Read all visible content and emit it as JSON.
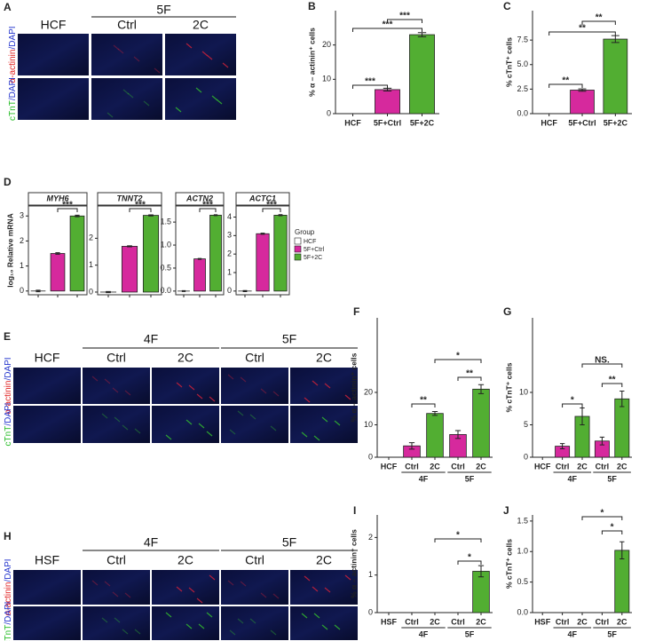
{
  "image_panels": [
    {
      "panel": "A",
      "groups": [
        "5F"
      ],
      "columns": [
        "HCF",
        "Ctrl",
        "2C"
      ],
      "stains": [
        [
          "α-actinin",
          "/DAPI"
        ],
        [
          "cTnT",
          "/DAPI"
        ]
      ]
    },
    {
      "panel": "E",
      "groups": [
        "4F",
        "5F"
      ],
      "columns": [
        "HCF",
        "Ctrl",
        "2C",
        "Ctrl",
        "2C"
      ],
      "stains": [
        [
          "α-actinin",
          "/DAPI"
        ],
        [
          "cTnT",
          "/DAPI"
        ]
      ]
    },
    {
      "panel": "H",
      "groups": [
        "4F",
        "5F"
      ],
      "columns": [
        "HSF",
        "Ctrl",
        "2C",
        "Ctrl",
        "2C"
      ],
      "stains": [
        [
          "α-actinin",
          "/DAPI"
        ],
        [
          "cTnT",
          "/DAPI"
        ]
      ]
    }
  ],
  "chart_data": [
    {
      "type": "bar",
      "panel": "B",
      "ylabel": "% α – actinin⁺ cells",
      "categories": [
        "HCF",
        "5F+Ctrl",
        "5F+2C"
      ],
      "values": [
        0,
        7,
        23
      ],
      "errors": [
        0,
        0.4,
        0.6
      ],
      "colors": [
        "#ffffff",
        "#d6299d",
        "#52ae32"
      ],
      "ylim": [
        0,
        30
      ],
      "yticks": [
        0,
        10,
        20
      ],
      "brackets": [
        "***",
        "***",
        "***"
      ]
    },
    {
      "type": "bar",
      "panel": "C",
      "ylabel": "% cTnT⁺ cells",
      "categories": [
        "HCF",
        "5F+Ctrl",
        "5F+2C"
      ],
      "values": [
        0,
        2.4,
        7.6
      ],
      "errors": [
        0,
        0.12,
        0.35
      ],
      "colors": [
        "#ffffff",
        "#d6299d",
        "#52ae32"
      ],
      "ylim": [
        0,
        10.5
      ],
      "yticks": [
        {
          "value": 0,
          "label": "0.0"
        },
        2.5,
        {
          "value": 5,
          "label": "5.0"
        },
        7.5
      ],
      "brackets": [
        "**",
        "**",
        "**"
      ]
    },
    {
      "type": "bar",
      "panel": "D",
      "title": "MYH6",
      "ylabel": "log₁₀ Relative mRNA",
      "categories": [
        null,
        null,
        null
      ],
      "values": [
        0,
        1.5,
        3.0
      ],
      "errors": [
        0.03,
        0.03,
        0.03
      ],
      "colors": [
        "#ffffff",
        "#d6299d",
        "#52ae32"
      ],
      "ylim": [
        -0.15,
        3.4
      ],
      "yticks": [
        0,
        1,
        2,
        3
      ],
      "brackets": [
        "***"
      ]
    },
    {
      "type": "bar",
      "title": "TNNT2",
      "categories": [
        null,
        null,
        null
      ],
      "values": [
        0,
        1.7,
        2.85
      ],
      "errors": [
        0.02,
        0.02,
        0.02
      ],
      "colors": [
        "#ffffff",
        "#d6299d",
        "#52ae32"
      ],
      "ylim": [
        -0.1,
        3.2
      ],
      "yticks": [
        0,
        1,
        2
      ],
      "brackets": [
        "***"
      ]
    },
    {
      "type": "bar",
      "title": "ACTN2",
      "categories": [
        null,
        null,
        null
      ],
      "values": [
        0,
        0.7,
        1.65
      ],
      "errors": [
        0.01,
        0.01,
        0.01
      ],
      "colors": [
        "#ffffff",
        "#d6299d",
        "#52ae32"
      ],
      "ylim": [
        -0.08,
        1.85
      ],
      "yticks": [
        {
          "value": 0,
          "label": "0.0"
        },
        0.5,
        {
          "value": 1,
          "label": "1.0"
        },
        1.5
      ],
      "brackets": [
        "***"
      ]
    },
    {
      "type": "bar",
      "title": "ACTC1",
      "categories": [
        null,
        null,
        null
      ],
      "values": [
        0,
        3.1,
        4.1
      ],
      "errors": [
        0.03,
        0.03,
        0.03
      ],
      "colors": [
        "#ffffff",
        "#d6299d",
        "#52ae32"
      ],
      "ylim": [
        -0.2,
        4.6
      ],
      "yticks": [
        0,
        1,
        2,
        3,
        4
      ],
      "brackets": [
        "***"
      ],
      "legend": {
        "title": "Group",
        "names": [
          "HCF",
          "5F+Ctrl",
          "5F+2C"
        ]
      }
    },
    {
      "type": "bar",
      "panel": "F",
      "ylabel": "% α – actinin⁺ cells",
      "categories": [
        "HCF",
        "Ctrl",
        "2C",
        "Ctrl",
        "2C"
      ],
      "group_labels": [
        "4F",
        "5F"
      ],
      "values": [
        0,
        3.5,
        13.5,
        7,
        21
      ],
      "errors": [
        0,
        1,
        0.6,
        1.2,
        1.4
      ],
      "colors": [
        "#ffffff",
        "#d6299d",
        "#52ae32",
        "#d6299d",
        "#52ae32"
      ],
      "ylim": [
        0,
        43
      ],
      "yticks": [
        0,
        10,
        20
      ],
      "brackets": [
        "**",
        "**",
        "*"
      ]
    },
    {
      "type": "bar",
      "panel": "G",
      "ylabel": "% cTnT⁺ cells",
      "categories": [
        "HCF",
        "Ctrl",
        "2C",
        "Ctrl",
        "2C"
      ],
      "group_labels": [
        "4F",
        "5F"
      ],
      "values": [
        0,
        1.7,
        6.3,
        2.5,
        9
      ],
      "errors": [
        0,
        0.4,
        1.3,
        0.6,
        1.2
      ],
      "colors": [
        "#ffffff",
        "#d6299d",
        "#52ae32",
        "#d6299d",
        "#52ae32"
      ],
      "ylim": [
        0,
        21.5
      ],
      "yticks": [
        0,
        5,
        10
      ],
      "brackets": [
        "*",
        "**",
        "NS."
      ]
    },
    {
      "type": "bar",
      "panel": "I",
      "ylabel": "% α – actinin⁺ cells",
      "categories": [
        "HSF",
        "Ctrl",
        "2C",
        "Ctrl",
        "2C"
      ],
      "group_labels": [
        "4F",
        "5F"
      ],
      "values": [
        0,
        0,
        0,
        0,
        1.1
      ],
      "errors": [
        0,
        0,
        0,
        0,
        0.15
      ],
      "colors": [
        "#ffffff",
        "#d6299d",
        "#52ae32",
        "#d6299d",
        "#52ae32"
      ],
      "ylim": [
        0,
        2.6
      ],
      "yticks": [
        0,
        1,
        2
      ],
      "brackets": [
        "*",
        "*"
      ]
    },
    {
      "type": "bar",
      "panel": "J",
      "ylabel": "% cTnT⁺ cells",
      "categories": [
        "HSF",
        "Ctrl",
        "2C",
        "Ctrl",
        "2C"
      ],
      "group_labels": [
        "4F",
        "5F"
      ],
      "values": [
        0,
        0,
        0,
        0,
        1.02
      ],
      "errors": [
        0,
        0,
        0,
        0,
        0.14
      ],
      "colors": [
        "#ffffff",
        "#d6299d",
        "#52ae32",
        "#d6299d",
        "#52ae32"
      ],
      "ylim": [
        0,
        1.6
      ],
      "yticks": [
        {
          "value": 0,
          "label": "0.0"
        },
        0.5,
        {
          "value": 1,
          "label": "1.0"
        },
        1.5
      ],
      "brackets": [
        "*",
        "*"
      ]
    }
  ]
}
